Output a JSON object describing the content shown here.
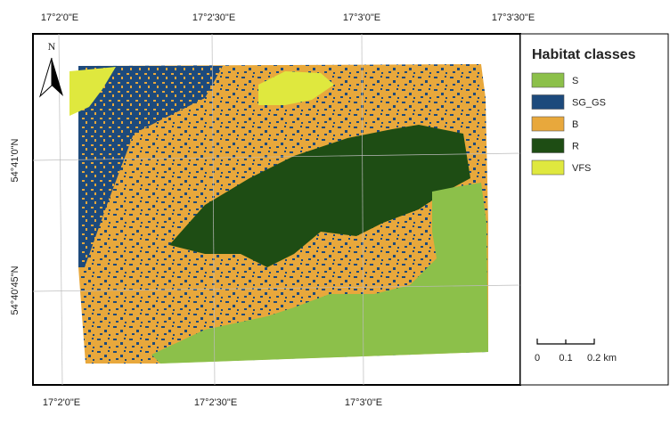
{
  "map": {
    "graticule": {
      "top": [
        "17°2'0\"E",
        "17°2'30\"E",
        "17°3'0\"E",
        "17°3'30\"E"
      ],
      "bottom": [
        "17°2'0\"E",
        "17°2'30\"E",
        "17°3'0\"E"
      ],
      "left": [
        "54°41'0\"N",
        "54°40'45\"N"
      ]
    },
    "north_arrow": "N",
    "legend": {
      "title": "Habitat classes",
      "classes": [
        {
          "name": "S",
          "color": "#8cc04a"
        },
        {
          "name": "SG_GS",
          "color": "#1d4a7c"
        },
        {
          "name": "B",
          "color": "#e8a83c"
        },
        {
          "name": "R",
          "color": "#1e4d14"
        },
        {
          "name": "VFS",
          "color": "#dfe83e"
        }
      ]
    },
    "scale_bar": [
      "0",
      "0.1",
      "0.2 km"
    ]
  }
}
